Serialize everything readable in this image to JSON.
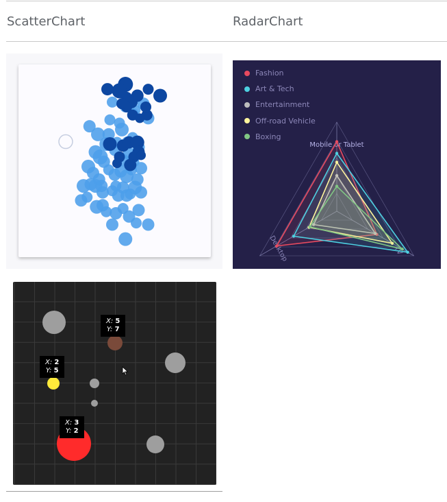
{
  "headings": {
    "scatter": "ScatterChart",
    "radar": "RadarChart"
  },
  "chart_data": [
    {
      "type": "scatter",
      "points": [
        [
          0.44,
          0.86,
          8
        ],
        [
          0.55,
          0.83,
          8
        ],
        [
          0.7,
          0.85,
          9
        ],
        [
          0.63,
          0.81,
          8
        ],
        [
          0.62,
          0.79,
          7
        ],
        [
          0.74,
          0.76,
          9
        ],
        [
          0.42,
          0.75,
          8
        ],
        [
          0.52,
          0.69,
          10
        ],
        [
          0.32,
          0.66,
          10
        ],
        [
          0.5,
          0.73,
          8
        ],
        [
          0.25,
          0.71,
          9
        ],
        [
          0.57,
          0.61,
          9
        ],
        [
          0.41,
          0.66,
          9
        ],
        [
          0.39,
          0.6,
          10
        ],
        [
          0.46,
          0.56,
          8
        ],
        [
          0.48,
          0.61,
          8
        ],
        [
          0.61,
          0.64,
          8
        ],
        [
          0.66,
          0.58,
          9
        ],
        [
          0.34,
          0.52,
          11
        ],
        [
          0.3,
          0.55,
          10
        ],
        [
          0.37,
          0.49,
          9
        ],
        [
          0.53,
          0.5,
          9
        ],
        [
          0.58,
          0.54,
          9
        ],
        [
          0.62,
          0.49,
          8
        ],
        [
          0.24,
          0.46,
          10
        ],
        [
          0.28,
          0.42,
          9
        ],
        [
          0.33,
          0.38,
          9
        ],
        [
          0.41,
          0.44,
          8
        ],
        [
          0.46,
          0.41,
          9
        ],
        [
          0.51,
          0.43,
          9
        ],
        [
          0.56,
          0.4,
          10
        ],
        [
          0.6,
          0.44,
          8
        ],
        [
          0.65,
          0.38,
          9
        ],
        [
          0.68,
          0.45,
          9
        ],
        [
          0.3,
          0.34,
          10
        ],
        [
          0.36,
          0.3,
          9
        ],
        [
          0.44,
          0.31,
          8
        ],
        [
          0.49,
          0.28,
          9
        ],
        [
          0.53,
          0.33,
          9
        ],
        [
          0.59,
          0.29,
          8
        ],
        [
          0.63,
          0.33,
          10
        ],
        [
          0.68,
          0.3,
          9
        ],
        [
          0.31,
          0.21,
          10
        ],
        [
          0.39,
          0.18,
          8
        ],
        [
          0.47,
          0.17,
          9
        ],
        [
          0.53,
          0.2,
          8
        ],
        [
          0.58,
          0.15,
          9
        ],
        [
          0.66,
          0.19,
          9
        ],
        [
          0.26,
          0.35,
          9
        ],
        [
          0.35,
          0.34,
          9
        ],
        [
          0.47,
          0.34,
          8
        ],
        [
          0.56,
          0.28,
          9
        ],
        [
          0.64,
          0.11,
          8
        ],
        [
          0.74,
          0.1,
          9
        ],
        [
          0.44,
          0.1,
          9
        ],
        [
          0.55,
          0.01,
          10
        ],
        [
          0.2,
          0.34,
          10
        ],
        [
          0.18,
          0.25,
          9
        ],
        [
          0.23,
          0.27,
          8
        ],
        [
          0.36,
          0.22,
          9
        ]
      ],
      "dark_points": [
        [
          0.55,
          0.97,
          11
        ],
        [
          0.5,
          0.93,
          11
        ],
        [
          0.4,
          0.94,
          9
        ],
        [
          0.74,
          0.94,
          8
        ],
        [
          0.65,
          0.9,
          9
        ],
        [
          0.56,
          0.89,
          8
        ],
        [
          0.6,
          0.86,
          9
        ],
        [
          0.56,
          0.83,
          8
        ],
        [
          0.61,
          0.78,
          8
        ],
        [
          0.67,
          0.76,
          7
        ],
        [
          0.73,
          0.78,
          8
        ],
        [
          0.42,
          0.6,
          10
        ],
        [
          0.53,
          0.59,
          9
        ],
        [
          0.58,
          0.61,
          9
        ],
        [
          0.65,
          0.61,
          10
        ],
        [
          0.66,
          0.55,
          9
        ],
        [
          0.5,
          0.52,
          8
        ],
        [
          0.62,
          0.52,
          8
        ],
        [
          0.68,
          0.53,
          7
        ],
        [
          0.59,
          0.47,
          9
        ],
        [
          0.48,
          0.48,
          7
        ],
        [
          0.84,
          0.9,
          10
        ],
        [
          0.72,
          0.83,
          8
        ],
        [
          0.52,
          0.85,
          8
        ]
      ],
      "hollow_point": [
        0.28,
        0.87,
        10
      ]
    },
    {
      "type": "radar",
      "axes": [
        "Mobile or Tablet",
        "TV",
        "Desktop"
      ],
      "series": [
        {
          "name": "Fashion",
          "values": [
            0.78,
            0.52,
            0.78
          ]
        },
        {
          "name": "Art & Tech",
          "values": [
            0.65,
            0.92,
            0.56
          ]
        },
        {
          "name": "Entertainment",
          "values": [
            0.4,
            0.5,
            0.3
          ]
        },
        {
          "name": "Off-road Vehicle",
          "values": [
            0.55,
            0.72,
            0.36
          ]
        },
        {
          "name": "Boxing",
          "values": [
            0.28,
            0.85,
            0.35
          ]
        }
      ]
    },
    {
      "type": "scatter",
      "points": [
        {
          "x": 2,
          "y": 5,
          "r": 2
        },
        {
          "x": 3,
          "y": 2,
          "r": 6
        },
        {
          "x": 5,
          "y": 7,
          "r": 2.5
        },
        {
          "x": 4,
          "y": 8,
          "r": 4
        },
        {
          "x": 9,
          "y": 6,
          "r": 3.5
        },
        {
          "x": 7,
          "y": 5,
          "r": 1.5
        },
        {
          "x": 8,
          "y": 4,
          "r": 1
        },
        {
          "x": 8,
          "y": 2,
          "r": 3
        }
      ],
      "tooltips": [
        {
          "x": "5",
          "y": "7"
        },
        {
          "x": "2",
          "y": "5"
        },
        {
          "x": "3",
          "y": "2"
        }
      ]
    }
  ],
  "legend": [
    {
      "label": "Fashion",
      "color": "#e84a5f"
    },
    {
      "label": "Art & Tech",
      "color": "#4dd0e1"
    },
    {
      "label": "Entertainment",
      "color": "#bdbdbd"
    },
    {
      "label": "Off-road Vehicle",
      "color": "#fff59d"
    },
    {
      "label": "Boxing",
      "color": "#81c784"
    }
  ],
  "tooltip_labels": {
    "x": "X:",
    "y": "Y:"
  },
  "colors": {
    "light_bubble": "#4c9eea",
    "dark_bubble": "#0d47a1",
    "radar_grid": "#7c7aa8"
  }
}
